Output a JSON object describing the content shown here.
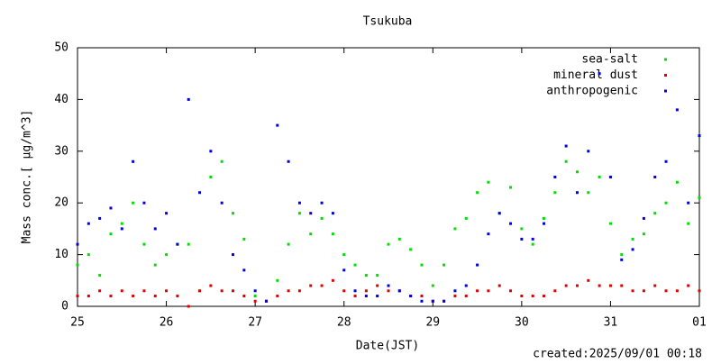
{
  "chart_data": {
    "type": "scatter",
    "title": "Tsukuba",
    "xlabel": "Date(JST)",
    "ylabel": "Mass conc.[ μg/m^3]",
    "annotation": "created:2025/09/01 00:18",
    "x": [
      25,
      25.125,
      25.25,
      25.375,
      25.5,
      25.625,
      25.75,
      25.875,
      26,
      26.125,
      26.25,
      26.375,
      26.5,
      26.625,
      26.75,
      26.875,
      27,
      27.125,
      27.25,
      27.375,
      27.5,
      27.625,
      27.75,
      27.875,
      28,
      28.125,
      28.25,
      28.375,
      28.5,
      28.625,
      28.75,
      28.875,
      29,
      29.125,
      29.25,
      29.375,
      29.5,
      29.625,
      29.75,
      29.875,
      30,
      30.125,
      30.25,
      30.375,
      30.5,
      30.625,
      30.75,
      30.875,
      31,
      31.125,
      31.25,
      31.375,
      31.5,
      31.625,
      31.75,
      31.875,
      32
    ],
    "series": [
      {
        "name": "sea-salt",
        "color": "#00e000",
        "values": [
          8,
          10,
          6,
          14,
          16,
          20,
          12,
          8,
          10,
          12,
          12,
          3,
          25,
          28,
          18,
          13,
          2,
          1,
          5,
          12,
          18,
          14,
          17,
          14,
          10,
          8,
          6,
          6,
          12,
          13,
          11,
          8,
          4,
          8,
          15,
          17,
          22,
          24,
          18,
          23,
          15,
          12,
          17,
          22,
          28,
          26,
          22,
          25,
          16,
          10,
          13,
          14,
          18,
          20,
          24,
          16,
          21
        ]
      },
      {
        "name": "mineral dust",
        "color": "#e00000",
        "values": [
          2,
          2,
          3,
          2,
          3,
          2,
          3,
          2,
          3,
          2,
          0,
          3,
          4,
          3,
          3,
          2,
          1,
          1,
          2,
          3,
          3,
          4,
          4,
          5,
          3,
          2,
          3,
          4,
          3,
          3,
          2,
          2,
          1,
          1,
          2,
          2,
          3,
          3,
          4,
          3,
          2,
          2,
          2,
          3,
          4,
          4,
          5,
          4,
          4,
          4,
          3,
          3,
          4,
          3,
          3,
          4,
          3
        ]
      },
      {
        "name": "anthropogenic",
        "color": "#0000e0",
        "values": [
          12,
          16,
          17,
          19,
          15,
          28,
          20,
          15,
          18,
          12,
          40,
          22,
          30,
          20,
          10,
          7,
          3,
          1,
          35,
          28,
          20,
          18,
          20,
          18,
          7,
          3,
          2,
          2,
          4,
          3,
          2,
          1,
          1,
          1,
          3,
          4,
          8,
          14,
          18,
          16,
          13,
          13,
          16,
          25,
          31,
          22,
          30,
          45,
          25,
          9,
          11,
          17,
          25,
          28,
          38,
          20,
          33
        ]
      }
    ],
    "xlim": [
      25,
      32
    ],
    "xticks": [
      25,
      26,
      27,
      28,
      29,
      30,
      31,
      {
        "value": 32,
        "label": "01"
      }
    ],
    "ylim": [
      0,
      50
    ],
    "yticks": [
      0,
      10,
      20,
      30,
      40,
      50
    ],
    "legend": "upper right"
  }
}
